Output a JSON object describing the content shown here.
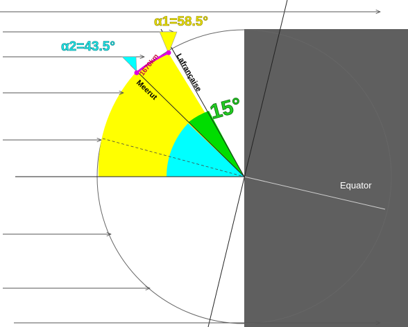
{
  "labels": {
    "alpha1": "α1=58.5°",
    "alpha2": "α2=43.5°",
    "angle_diff": "15°",
    "distance": "1670km",
    "city_east": "Lafrançaise",
    "city_west": "Meerut",
    "equator": "Equator"
  },
  "colors": {
    "yellow_sector": "#ffff00",
    "cyan_sector": "#00ffff",
    "green_sector": "#00cc00",
    "night_side": "#5f5f5f",
    "arc_segment": "#e000e0",
    "city_dot": "#e000e0"
  },
  "geometry_data": {
    "latitude_lafrancaise_deg": 31.5,
    "latitude_meerut_deg": 46.5,
    "difference_deg": 15
  }
}
